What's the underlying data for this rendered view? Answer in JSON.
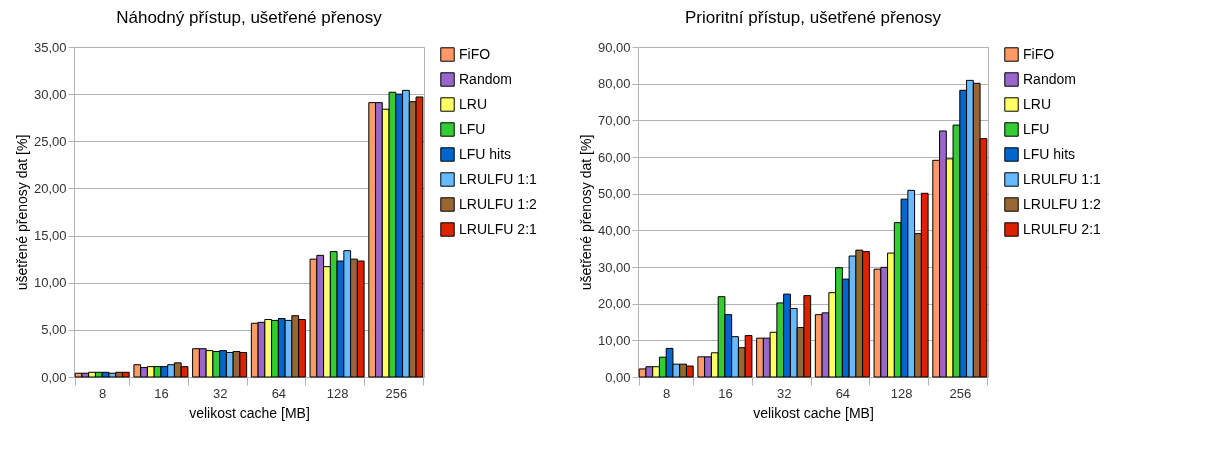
{
  "chart_data": [
    {
      "type": "bar",
      "title": "Náhodný přístup, ušetřené přenosy",
      "xlabel": "velikost cache [MB]",
      "ylabel": "ušetřené přenosy dat [%]",
      "categories": [
        "8",
        "16",
        "32",
        "64",
        "128",
        "256"
      ],
      "ylim": [
        0,
        35
      ],
      "yticks": [
        {
          "value": 0,
          "label": "0,00"
        },
        {
          "value": 5,
          "label": "5,00"
        },
        {
          "value": 10,
          "label": "10,00"
        },
        {
          "value": 15,
          "label": "15,00"
        },
        {
          "value": 20,
          "label": "20,00"
        },
        {
          "value": 25,
          "label": "25,00"
        },
        {
          "value": 30,
          "label": "30,00"
        },
        {
          "value": 35,
          "label": "35,00"
        }
      ],
      "grid": "y",
      "legend": "right",
      "series": [
        {
          "name": "FiFO",
          "color": "#ff9966",
          "values": [
            0.4,
            1.3,
            3.0,
            5.7,
            12.5,
            29.1
          ]
        },
        {
          "name": "Random",
          "color": "#9966cc",
          "values": [
            0.4,
            1.0,
            3.0,
            5.8,
            12.9,
            29.1
          ]
        },
        {
          "name": "LRU",
          "color": "#ffff66",
          "values": [
            0.5,
            1.1,
            2.8,
            6.1,
            11.7,
            28.4
          ]
        },
        {
          "name": "LFU",
          "color": "#33cc33",
          "values": [
            0.5,
            1.1,
            2.7,
            6.0,
            13.3,
            30.2
          ]
        },
        {
          "name": "LFU hits",
          "color": "#0066cc",
          "values": [
            0.5,
            1.1,
            2.8,
            6.2,
            12.3,
            30.0
          ]
        },
        {
          "name": "LRULFU 1:1",
          "color": "#66bbff",
          "values": [
            0.4,
            1.3,
            2.6,
            6.0,
            13.4,
            30.4
          ]
        },
        {
          "name": "LRULFU 1:2",
          "color": "#996633",
          "values": [
            0.5,
            1.5,
            2.7,
            6.5,
            12.5,
            29.2
          ]
        },
        {
          "name": "LRULFU 2:1",
          "color": "#dd2200",
          "values": [
            0.5,
            1.1,
            2.6,
            6.1,
            12.3,
            29.7
          ]
        }
      ]
    },
    {
      "type": "bar",
      "title": "Prioritní přístup, ušetřené přenosy",
      "xlabel": "velikost cache [MB]",
      "ylabel": "ušetřené přenosy dat [%]",
      "categories": [
        "8",
        "16",
        "32",
        "64",
        "128",
        "256"
      ],
      "ylim": [
        0,
        90
      ],
      "yticks": [
        {
          "value": 0,
          "label": "0,00"
        },
        {
          "value": 10,
          "label": "10,00"
        },
        {
          "value": 20,
          "label": "20,00"
        },
        {
          "value": 30,
          "label": "30,00"
        },
        {
          "value": 40,
          "label": "40,00"
        },
        {
          "value": 50,
          "label": "50,00"
        },
        {
          "value": 60,
          "label": "60,00"
        },
        {
          "value": 70,
          "label": "70,00"
        },
        {
          "value": 80,
          "label": "80,00"
        },
        {
          "value": 90,
          "label": "90,00"
        }
      ],
      "grid": "y",
      "legend": "right",
      "series": [
        {
          "name": "FiFO",
          "color": "#ff9966",
          "values": [
            2.2,
            5.5,
            10.6,
            17.0,
            29.4,
            59.1
          ]
        },
        {
          "name": "Random",
          "color": "#9966cc",
          "values": [
            2.8,
            5.5,
            10.6,
            17.5,
            29.9,
            67.1
          ]
        },
        {
          "name": "LRU",
          "color": "#ffff66",
          "values": [
            2.8,
            6.6,
            12.2,
            23.0,
            33.8,
            59.5
          ]
        },
        {
          "name": "LFU",
          "color": "#33cc33",
          "values": [
            5.4,
            21.9,
            20.2,
            29.8,
            42.1,
            68.7
          ]
        },
        {
          "name": "LFU hits",
          "color": "#0066cc",
          "values": [
            7.8,
            17.0,
            22.6,
            26.7,
            48.5,
            78.2
          ]
        },
        {
          "name": "LRULFU 1:1",
          "color": "#66bbff",
          "values": [
            3.5,
            11.0,
            18.7,
            33.0,
            50.9,
            80.9
          ]
        },
        {
          "name": "LRULFU 1:2",
          "color": "#996633",
          "values": [
            3.5,
            8.0,
            13.5,
            34.6,
            39.1,
            80.1
          ]
        },
        {
          "name": "LRULFU 2:1",
          "color": "#dd2200",
          "values": [
            3.0,
            11.3,
            22.2,
            34.2,
            50.1,
            65.0
          ]
        }
      ]
    }
  ]
}
